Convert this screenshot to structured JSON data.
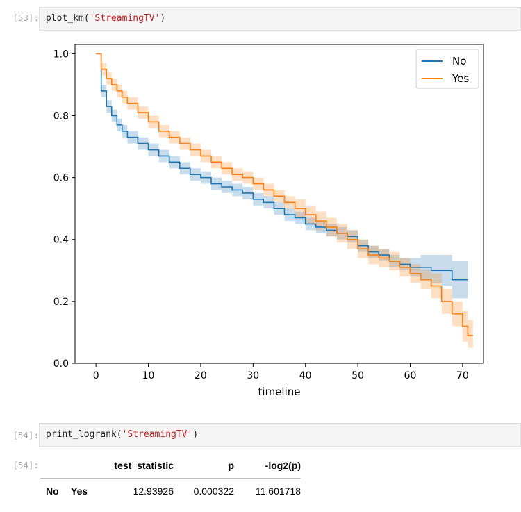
{
  "cells": [
    {
      "prompt": "[53]:",
      "code_func": "plot_km(",
      "code_arg": "'StreamingTV'",
      "code_end": ")"
    },
    {
      "prompt": "[54]:",
      "code_func": "print_logrank(",
      "code_arg": "'StreamingTV'",
      "code_end": ")"
    },
    {
      "prompt": "[54]:"
    }
  ],
  "chart_data": {
    "type": "line",
    "title": "",
    "xlabel": "timeline",
    "ylabel": "",
    "xlim": [
      -4,
      74
    ],
    "ylim": [
      0,
      1.03
    ],
    "xticks": [
      0,
      10,
      20,
      30,
      40,
      50,
      60,
      70
    ],
    "yticks": [
      "0.0",
      "0.2",
      "0.4",
      "0.6",
      "0.8",
      "1.0"
    ],
    "legend_position": "top-right",
    "grid": false,
    "series": [
      {
        "name": "No",
        "color": "#1f77b4",
        "band_color": "#1f77b4",
        "x": [
          0,
          1,
          2,
          3,
          4,
          5,
          6,
          8,
          10,
          12,
          14,
          16,
          18,
          20,
          22,
          24,
          26,
          28,
          30,
          32,
          34,
          36,
          38,
          40,
          42,
          44,
          46,
          48,
          50,
          52,
          54,
          56,
          58,
          60,
          62,
          64,
          66,
          68,
          70,
          71
        ],
        "y": [
          1.0,
          0.88,
          0.83,
          0.8,
          0.77,
          0.75,
          0.73,
          0.71,
          0.69,
          0.67,
          0.65,
          0.63,
          0.61,
          0.6,
          0.58,
          0.57,
          0.56,
          0.55,
          0.53,
          0.52,
          0.5,
          0.48,
          0.47,
          0.45,
          0.44,
          0.43,
          0.42,
          0.41,
          0.38,
          0.36,
          0.35,
          0.33,
          0.32,
          0.31,
          0.31,
          0.3,
          0.3,
          0.27,
          0.27,
          0.27
        ],
        "lower": [
          1.0,
          0.86,
          0.81,
          0.78,
          0.75,
          0.73,
          0.71,
          0.69,
          0.67,
          0.65,
          0.63,
          0.61,
          0.59,
          0.58,
          0.56,
          0.55,
          0.54,
          0.53,
          0.51,
          0.5,
          0.48,
          0.46,
          0.45,
          0.43,
          0.42,
          0.41,
          0.4,
          0.39,
          0.36,
          0.34,
          0.33,
          0.31,
          0.3,
          0.28,
          0.27,
          0.26,
          0.25,
          0.21,
          0.21,
          0.21
        ],
        "upper": [
          1.0,
          0.9,
          0.85,
          0.82,
          0.79,
          0.77,
          0.75,
          0.73,
          0.71,
          0.69,
          0.67,
          0.65,
          0.63,
          0.62,
          0.6,
          0.59,
          0.58,
          0.57,
          0.55,
          0.54,
          0.52,
          0.5,
          0.49,
          0.47,
          0.46,
          0.45,
          0.44,
          0.43,
          0.4,
          0.38,
          0.37,
          0.35,
          0.34,
          0.34,
          0.35,
          0.35,
          0.35,
          0.33,
          0.33,
          0.33
        ]
      },
      {
        "name": "Yes",
        "color": "#ff7f0e",
        "band_color": "#ff7f0e",
        "x": [
          0,
          1,
          2,
          3,
          4,
          5,
          6,
          8,
          10,
          12,
          14,
          16,
          18,
          20,
          22,
          24,
          26,
          28,
          30,
          32,
          34,
          36,
          38,
          40,
          42,
          44,
          46,
          48,
          50,
          52,
          54,
          56,
          58,
          60,
          62,
          64,
          66,
          68,
          70,
          71,
          72
        ],
        "y": [
          1.0,
          0.95,
          0.92,
          0.9,
          0.88,
          0.86,
          0.84,
          0.81,
          0.78,
          0.75,
          0.73,
          0.71,
          0.69,
          0.67,
          0.65,
          0.63,
          0.61,
          0.6,
          0.58,
          0.56,
          0.54,
          0.52,
          0.5,
          0.48,
          0.46,
          0.44,
          0.42,
          0.4,
          0.37,
          0.35,
          0.34,
          0.33,
          0.31,
          0.29,
          0.27,
          0.25,
          0.2,
          0.16,
          0.12,
          0.09,
          0.09
        ],
        "lower": [
          1.0,
          0.93,
          0.9,
          0.88,
          0.86,
          0.84,
          0.82,
          0.79,
          0.76,
          0.73,
          0.71,
          0.69,
          0.67,
          0.65,
          0.63,
          0.61,
          0.59,
          0.58,
          0.56,
          0.54,
          0.52,
          0.5,
          0.47,
          0.45,
          0.43,
          0.41,
          0.39,
          0.37,
          0.34,
          0.32,
          0.31,
          0.3,
          0.28,
          0.26,
          0.24,
          0.21,
          0.16,
          0.12,
          0.07,
          0.05,
          0.04
        ],
        "upper": [
          1.0,
          0.97,
          0.94,
          0.92,
          0.9,
          0.88,
          0.86,
          0.83,
          0.8,
          0.77,
          0.75,
          0.73,
          0.71,
          0.69,
          0.67,
          0.65,
          0.63,
          0.62,
          0.6,
          0.58,
          0.56,
          0.54,
          0.53,
          0.51,
          0.49,
          0.47,
          0.45,
          0.43,
          0.4,
          0.38,
          0.37,
          0.36,
          0.34,
          0.32,
          0.3,
          0.29,
          0.24,
          0.2,
          0.17,
          0.14,
          0.15
        ]
      }
    ]
  },
  "logrank_table": {
    "columns": [
      "test_statistic",
      "p",
      "-log2(p)"
    ],
    "row": {
      "index": [
        "No",
        "Yes"
      ],
      "values": [
        "12.93926",
        "0.000322",
        "11.601718"
      ]
    }
  }
}
